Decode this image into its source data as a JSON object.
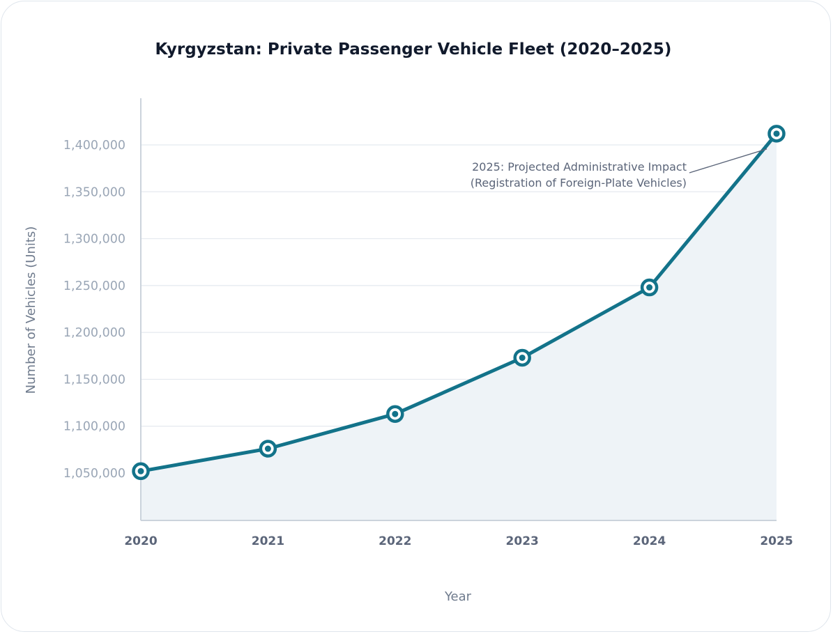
{
  "chart_data": {
    "type": "line",
    "title": "Kyrgyzstan: Private Passenger Vehicle Fleet (2020–2025)",
    "xlabel": "Year",
    "ylabel": "Number of Vehicles (Units)",
    "categories": [
      "2020",
      "2021",
      "2022",
      "2023",
      "2024",
      "2025"
    ],
    "series": [
      {
        "name": "Private Passenger Vehicles",
        "values": [
          1052000,
          1076000,
          1113000,
          1173000,
          1248000,
          1412000
        ]
      }
    ],
    "yticks": [
      1050000,
      1100000,
      1150000,
      1200000,
      1250000,
      1300000,
      1350000,
      1400000
    ],
    "ytick_labels": [
      "1,050,000",
      "1,100,000",
      "1,150,000",
      "1,200,000",
      "1,250,000",
      "1,300,000",
      "1,350,000",
      "1,400,000"
    ],
    "ylim": [
      1000000,
      1450000
    ],
    "grid": true,
    "annotation": {
      "point": "2025",
      "line1": "2025: Projected Administrative Impact",
      "line2": "(Registration of Foreign-Plate Vehicles)"
    },
    "colors": {
      "line": "#13738a",
      "area": "#eef3f7",
      "grid": "#e4e9ef",
      "axis": "#cbd3dc"
    }
  }
}
